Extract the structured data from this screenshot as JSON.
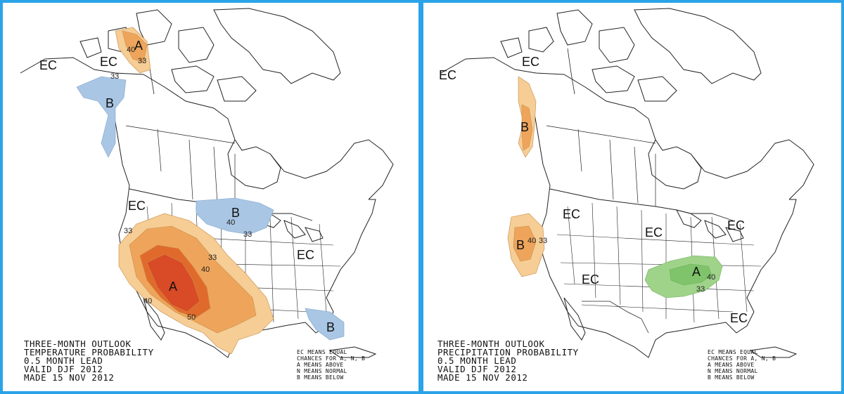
{
  "colors": {
    "frame": "#2aa3e8",
    "above_light": "#f5cd95",
    "above_mid": "#eea55b",
    "above_dark": "#e06a2c",
    "above_max": "#d94a26",
    "below_light": "#a9c6e4",
    "precip_above": "#9fd38a"
  },
  "temperature_map": {
    "title_lines": [
      "THREE-MONTH OUTLOOK",
      "TEMPERATURE PROBABILITY",
      "0.5 MONTH LEAD",
      "VALID DJF 2012",
      "MADE 15 NOV 2012"
    ],
    "legend_lines": [
      "EC MEANS EQUAL",
      "CHANCES FOR A, N, B",
      "A MEANS ABOVE",
      "N MEANS NORMAL",
      "B MEANS BELOW"
    ],
    "labels": {
      "ec_west": "EC",
      "ec_yukon": "EC",
      "ec_pacnw": "EC",
      "ec_east": "EC",
      "a_alaska": "A",
      "b_bc": "B",
      "b_glakes": "B",
      "a_southwest": "A",
      "b_florida": "B"
    },
    "contours": {
      "c40_alaska": "40",
      "c33_alaska": "33",
      "c40_glakes": "40",
      "c33_glakes": "33",
      "c33_west": "33",
      "c33_plains": "33",
      "c40_plains": "40",
      "c40_sw": "40",
      "c50_sw": "50"
    }
  },
  "precipitation_map": {
    "title_lines": [
      "THREE-MONTH OUTLOOK",
      "PRECIPITATION PROBABILITY",
      "0.5 MONTH LEAD",
      "VALID DJF 2012",
      "MADE 15 NOV 2012"
    ],
    "legend_lines": [
      "EC MEANS EQUAL",
      "CHANCES FOR A, N, B",
      "A MEANS ABOVE",
      "N MEANS NORMAL",
      "B MEANS BELOW"
    ],
    "labels": {
      "ec_west": "EC",
      "ec_yukon": "EC",
      "b_bc": "B",
      "ec_pacnw": "EC",
      "b_california": "B",
      "ec_central": "EC",
      "ec_northeast": "EC",
      "ec_southplains": "EC",
      "a_ohio": "A",
      "ec_southeast": "EC"
    },
    "contours": {
      "c40_cal": "40",
      "c33_cal": "33",
      "c33_ohio": "33",
      "c40_ohio": "40"
    }
  }
}
